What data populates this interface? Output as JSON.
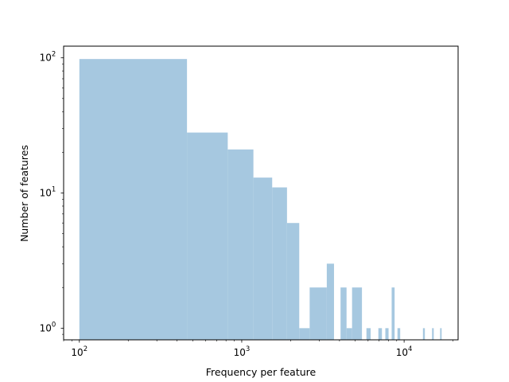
{
  "chart_data": {
    "type": "bar",
    "title": "",
    "xlabel": "Frequency per feature",
    "ylabel": "Number of features",
    "xscale": "log",
    "yscale": "log",
    "xlim": [
      80,
      21500
    ],
    "ylim": [
      0.82,
      122
    ],
    "grid": false,
    "legend": null,
    "bar_color": "#a6c8e0",
    "x_tick_labels": [
      {
        "value": 100,
        "base": "10",
        "exp": "2"
      },
      {
        "value": 1000,
        "base": "10",
        "exp": "3"
      },
      {
        "value": 10000,
        "base": "10",
        "exp": "4"
      }
    ],
    "y_tick_labels": [
      {
        "value": 1,
        "base": "10",
        "exp": "0"
      },
      {
        "value": 10,
        "base": "10",
        "exp": "1"
      },
      {
        "value": 100,
        "base": "10",
        "exp": "2"
      }
    ],
    "bins": [
      {
        "x0": 100,
        "x1": 460,
        "count": 98
      },
      {
        "x0": 460,
        "x1": 820,
        "count": 28
      },
      {
        "x0": 820,
        "x1": 1180,
        "count": 21
      },
      {
        "x0": 1180,
        "x1": 1540,
        "count": 13
      },
      {
        "x0": 1540,
        "x1": 1900,
        "count": 11
      },
      {
        "x0": 1900,
        "x1": 2260,
        "count": 6
      },
      {
        "x0": 2260,
        "x1": 2620,
        "count": 1
      },
      {
        "x0": 2620,
        "x1": 3340,
        "count": 2
      },
      {
        "x0": 3340,
        "x1": 3700,
        "count": 3
      },
      {
        "x0": 4060,
        "x1": 4420,
        "count": 2
      },
      {
        "x0": 4420,
        "x1": 4780,
        "count": 1
      },
      {
        "x0": 4780,
        "x1": 5500,
        "count": 2
      },
      {
        "x0": 5860,
        "x1": 6220,
        "count": 1
      },
      {
        "x0": 6940,
        "x1": 7300,
        "count": 1
      },
      {
        "x0": 7660,
        "x1": 8020,
        "count": 1
      },
      {
        "x0": 8380,
        "x1": 8740,
        "count": 2
      },
      {
        "x0": 9100,
        "x1": 9460,
        "count": 1
      },
      {
        "x0": 13060,
        "x1": 13420,
        "count": 1
      },
      {
        "x0": 14860,
        "x1": 15220,
        "count": 1
      },
      {
        "x0": 16660,
        "x1": 17020,
        "count": 1
      }
    ]
  }
}
